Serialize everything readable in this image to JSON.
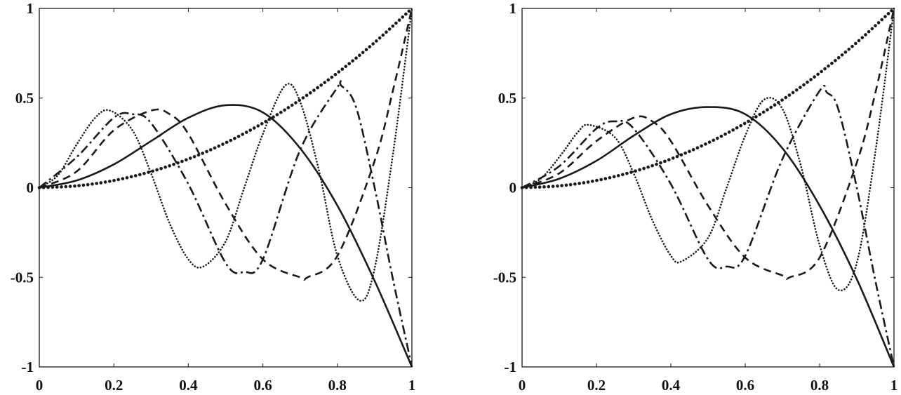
{
  "chart_data": [
    {
      "type": "line",
      "title": "",
      "xlabel": "",
      "ylabel": "",
      "xlim": [
        0,
        1
      ],
      "ylim": [
        -1,
        1
      ],
      "grid": false,
      "legend": "none",
      "xticks": [
        "0",
        "0.2",
        "0.4",
        "0.6",
        "0.8",
        "1"
      ],
      "yticks": [
        "-1",
        "-0.5",
        "0",
        "0.5",
        "1"
      ],
      "series": [
        {
          "style": "dotted-heavy",
          "x": [
            0,
            0.1,
            0.2,
            0.3,
            0.4,
            0.5,
            0.6,
            0.7,
            0.8,
            0.9,
            1
          ],
          "y": [
            0,
            0.01,
            0.04,
            0.09,
            0.16,
            0.25,
            0.36,
            0.49,
            0.64,
            0.81,
            1
          ]
        },
        {
          "style": "solid",
          "x": [
            0,
            0.1,
            0.2,
            0.3,
            0.4,
            0.5,
            0.6,
            0.7,
            0.8,
            0.9,
            1
          ],
          "y": [
            0,
            0.04,
            0.13,
            0.26,
            0.39,
            0.46,
            0.42,
            0.22,
            -0.1,
            -0.52,
            -1
          ]
        },
        {
          "style": "dashed",
          "x": [
            0,
            0.1,
            0.2,
            0.3,
            0.35,
            0.4,
            0.5,
            0.6,
            0.7,
            0.72,
            0.8,
            0.9,
            0.95,
            1
          ],
          "y": [
            0,
            0.09,
            0.32,
            0.43,
            0.41,
            0.3,
            -0.09,
            -0.4,
            -0.5,
            -0.5,
            -0.38,
            0.15,
            0.55,
            1
          ]
        },
        {
          "style": "dash-dot",
          "x": [
            0,
            0.1,
            0.2,
            0.25,
            0.3,
            0.4,
            0.5,
            0.55,
            0.6,
            0.7,
            0.8,
            0.81,
            0.85,
            0.9,
            0.95,
            1
          ],
          "y": [
            0,
            0.17,
            0.39,
            0.41,
            0.36,
            0.02,
            -0.42,
            -0.47,
            -0.4,
            0.21,
            0.56,
            0.57,
            0.45,
            0.0,
            -0.52,
            -1
          ]
        },
        {
          "style": "dotted",
          "x": [
            0,
            0.05,
            0.1,
            0.15,
            0.19,
            0.25,
            0.3,
            0.35,
            0.4,
            0.44,
            0.5,
            0.55,
            0.6,
            0.66,
            0.7,
            0.75,
            0.8,
            0.86,
            0.9,
            0.95,
            1
          ],
          "y": [
            0,
            0.07,
            0.24,
            0.39,
            0.43,
            0.32,
            0.08,
            -0.2,
            -0.4,
            -0.44,
            -0.3,
            0.0,
            0.3,
            0.57,
            0.48,
            0.1,
            -0.38,
            -0.63,
            -0.45,
            0.2,
            1
          ]
        }
      ]
    },
    {
      "type": "line",
      "title": "",
      "xlabel": "",
      "ylabel": "",
      "xlim": [
        0,
        1
      ],
      "ylim": [
        -1,
        1
      ],
      "grid": false,
      "legend": "none",
      "xticks": [
        "0",
        "0.2",
        "0.4",
        "0.6",
        "0.8",
        "1"
      ],
      "yticks": [
        "-1",
        "-0.5",
        "0",
        "0.5",
        "1"
      ],
      "series": [
        {
          "style": "dotted-heavy",
          "x": [
            0,
            0.1,
            0.2,
            0.3,
            0.4,
            0.5,
            0.6,
            0.7,
            0.8,
            0.9,
            1
          ],
          "y": [
            0,
            0.01,
            0.04,
            0.09,
            0.16,
            0.25,
            0.36,
            0.49,
            0.64,
            0.81,
            1
          ]
        },
        {
          "style": "solid",
          "x": [
            0,
            0.1,
            0.2,
            0.3,
            0.4,
            0.5,
            0.6,
            0.7,
            0.8,
            0.9,
            1
          ],
          "y": [
            0,
            0.05,
            0.15,
            0.29,
            0.41,
            0.45,
            0.41,
            0.22,
            -0.1,
            -0.51,
            -1
          ]
        },
        {
          "style": "dashed",
          "x": [
            0,
            0.1,
            0.2,
            0.3,
            0.35,
            0.4,
            0.5,
            0.6,
            0.7,
            0.72,
            0.8,
            0.9,
            0.95,
            1
          ],
          "y": [
            0,
            0.08,
            0.26,
            0.39,
            0.37,
            0.26,
            -0.1,
            -0.39,
            -0.49,
            -0.5,
            -0.39,
            0.14,
            0.53,
            1
          ]
        },
        {
          "style": "dash-dot",
          "x": [
            0,
            0.1,
            0.2,
            0.25,
            0.3,
            0.4,
            0.5,
            0.55,
            0.6,
            0.7,
            0.8,
            0.82,
            0.85,
            0.9,
            0.95,
            1
          ],
          "y": [
            0,
            0.12,
            0.33,
            0.37,
            0.33,
            0.02,
            -0.4,
            -0.44,
            -0.38,
            0.16,
            0.54,
            0.53,
            0.44,
            0.0,
            -0.52,
            -1
          ]
        },
        {
          "style": "dotted",
          "x": [
            0,
            0.05,
            0.1,
            0.15,
            0.18,
            0.25,
            0.3,
            0.35,
            0.4,
            0.43,
            0.5,
            0.55,
            0.6,
            0.65,
            0.7,
            0.75,
            0.8,
            0.85,
            0.9,
            0.95,
            1
          ],
          "y": [
            0,
            0.05,
            0.17,
            0.31,
            0.35,
            0.28,
            0.08,
            -0.18,
            -0.38,
            -0.41,
            -0.28,
            0.0,
            0.29,
            0.49,
            0.44,
            0.12,
            -0.32,
            -0.57,
            -0.42,
            0.2,
            1
          ]
        }
      ]
    }
  ]
}
